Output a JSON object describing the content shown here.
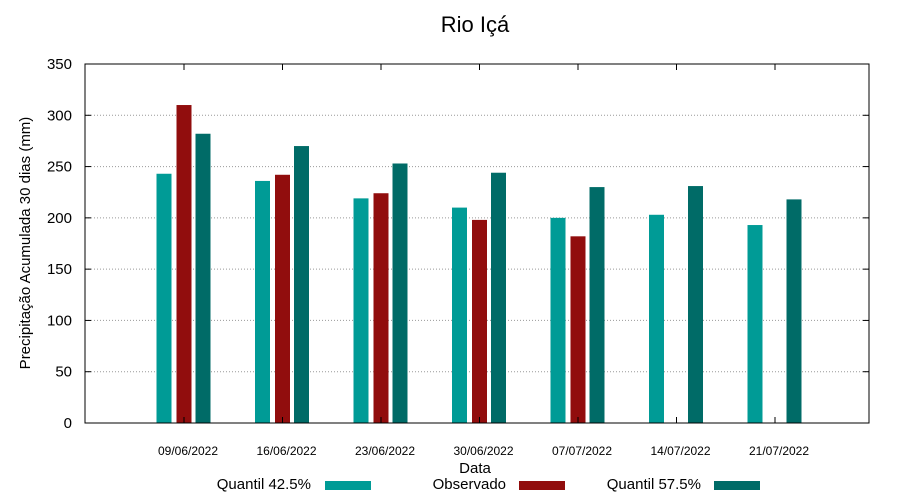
{
  "chart_data": {
    "type": "bar",
    "title": "Rio Içá",
    "xlabel": "Data",
    "ylabel": "Precipitação Acumulada 30 dias (mm)",
    "ylim": [
      0,
      350
    ],
    "yticks": [
      0,
      50,
      100,
      150,
      200,
      250,
      300,
      350
    ],
    "grid": true,
    "legend_position": "bottom",
    "categories": [
      "09/06/2022",
      "16/06/2022",
      "23/06/2022",
      "30/06/2022",
      "07/07/2022",
      "14/07/2022",
      "21/07/2022"
    ],
    "series": [
      {
        "name": "Quantil 42.5%",
        "color": "#009b96",
        "values": [
          243,
          236,
          219,
          210,
          200,
          203,
          193
        ]
      },
      {
        "name": "Observado",
        "color": "#910d0d",
        "values": [
          310,
          242,
          224,
          198,
          182,
          null,
          null
        ]
      },
      {
        "name": "Quantil 57.5%",
        "color": "#006b67",
        "values": [
          282,
          270,
          253,
          244,
          230,
          231,
          218
        ]
      }
    ]
  }
}
